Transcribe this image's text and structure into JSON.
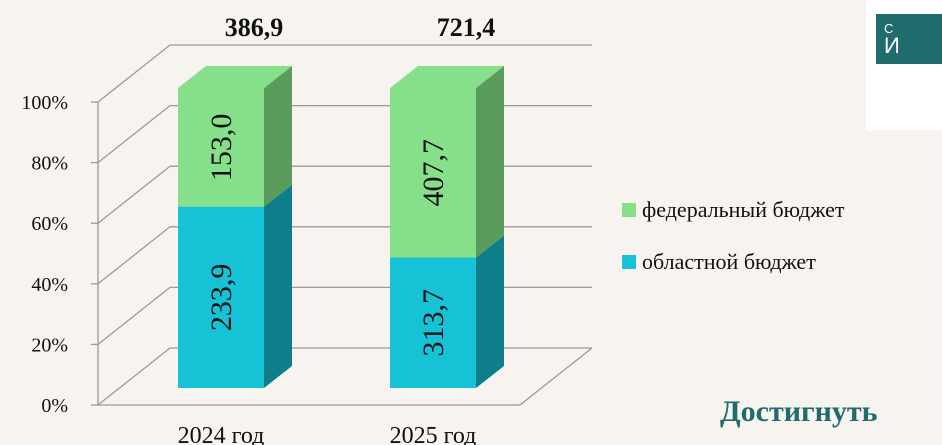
{
  "chart_data": {
    "type": "bar",
    "stacked": true,
    "normalized": true,
    "three_d": true,
    "categories": [
      "2024 год",
      "2025 год"
    ],
    "totals": [
      "386,9",
      "721,4"
    ],
    "series": [
      {
        "name": "областной бюджет",
        "values": [
          233.9,
          313.7
        ],
        "labels": [
          "233,9",
          "313,7"
        ],
        "color": "#16c2d6",
        "side_color": "#0e7f8a"
      },
      {
        "name": "федеральный бюджет",
        "values": [
          153.0,
          407.7
        ],
        "labels": [
          "153,0",
          "407,7"
        ],
        "color": "#86e08a",
        "side_color": "#5a9c5c"
      }
    ],
    "y_ticks": [
      "0%",
      "20%",
      "40%",
      "60%",
      "80%",
      "100%"
    ],
    "ylim": [
      0,
      100
    ],
    "grid": true,
    "legend_position": "right",
    "legend_order": [
      "федеральный бюджет",
      "областной бюджет"
    ]
  },
  "logo": {
    "small_text": "С",
    "big_text": "И"
  },
  "footer": {
    "heading": "Достигнуть"
  }
}
